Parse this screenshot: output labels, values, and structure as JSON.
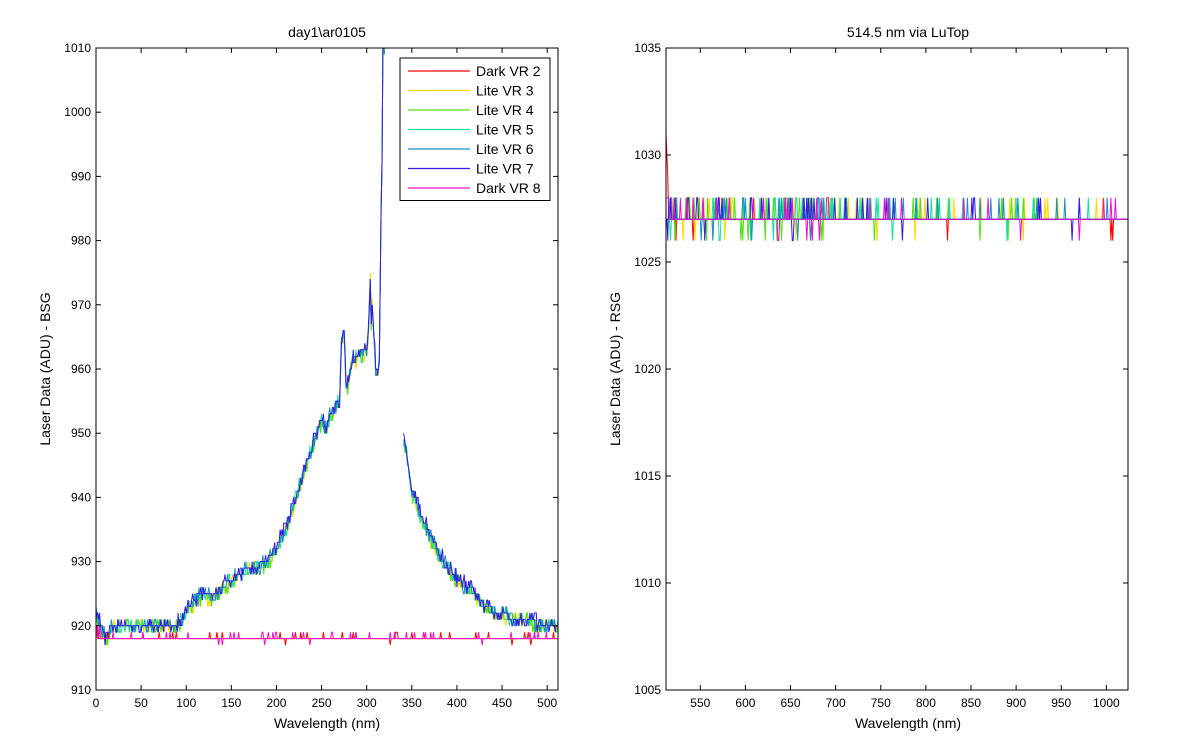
{
  "series_colors": [
    "#ff0000",
    "#ffd700",
    "#55e015",
    "#15e0a0",
    "#1a90c0",
    "#3a1ae0",
    "#ee10c8"
  ],
  "chart_data": [
    {
      "type": "line",
      "title": "day1\\ar0105",
      "xlabel": "Wavelength (nm)",
      "ylabel": "Laser Data (ADU) - BSG",
      "xlim": [
        0,
        512
      ],
      "ylim": [
        910,
        1010
      ],
      "xticks": [
        0,
        50,
        100,
        150,
        200,
        250,
        300,
        350,
        400,
        450,
        500
      ],
      "yticks": [
        910,
        920,
        930,
        940,
        950,
        960,
        970,
        980,
        990,
        1000,
        1010
      ],
      "grid": false,
      "legend_position": "top-right",
      "series_names": [
        "Dark VR 2",
        "Lite VR 3",
        "Lite VR 4",
        "Lite VR 5",
        "Lite VR 6",
        "Lite VR 7",
        "Dark VR 8"
      ],
      "lite_profile": {
        "x": [
          0,
          10,
          20,
          40,
          60,
          80,
          90,
          100,
          110,
          120,
          130,
          140,
          150,
          160,
          170,
          180,
          190,
          200,
          210,
          220,
          230,
          240,
          250,
          255,
          260,
          265,
          270,
          272,
          275,
          277,
          278,
          280,
          283,
          300,
          302,
          304,
          305,
          306,
          308,
          310,
          312,
          314,
          316,
          317,
          318,
          320,
          321,
          340,
          345,
          350,
          360,
          370,
          380,
          390,
          400,
          410,
          420,
          430,
          440,
          450,
          460,
          470,
          480,
          490,
          500,
          512
        ],
        "y": [
          922,
          918,
          920,
          920,
          920,
          920,
          920,
          922,
          924,
          925,
          924,
          926,
          927,
          928,
          929,
          929,
          930,
          932,
          935,
          939,
          944,
          948,
          952,
          950,
          953,
          954,
          955,
          964,
          966,
          958,
          957,
          958,
          961,
          963,
          966,
          974,
          967,
          970,
          965,
          960,
          959,
          961,
          985,
          992,
          1010,
          1010,
          null,
          950,
          946,
          941,
          937,
          934,
          931,
          929,
          927,
          926,
          925,
          923,
          922,
          922,
          921,
          921,
          921,
          920,
          920,
          920
        ]
      },
      "dark_baseline": 918
    },
    {
      "type": "line",
      "title": "514.5 nm via LuTop",
      "xlabel": "Wavelength (nm)",
      "ylabel": "Laser Data (ADU) - RSG",
      "xlim": [
        512,
        1024
      ],
      "ylim": [
        1005,
        1035
      ],
      "xticks": [
        550,
        600,
        650,
        700,
        750,
        800,
        850,
        900,
        950,
        1000
      ],
      "yticks": [
        1005,
        1010,
        1015,
        1020,
        1025,
        1030,
        1035
      ],
      "grid": false,
      "baseline": 1027,
      "start_spike": 1031
    }
  ]
}
